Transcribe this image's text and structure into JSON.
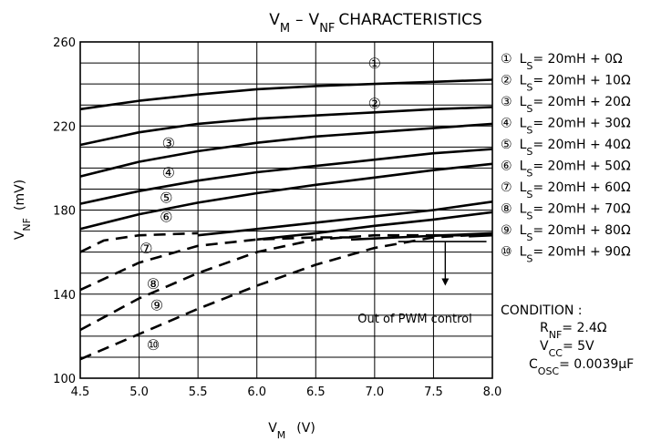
{
  "chart_data": {
    "type": "line",
    "title": {
      "main": "V",
      "sub1": "M",
      "dash": "–",
      "main2": "V",
      "sub2": "NF",
      "rest": "CHARACTERISTICS"
    },
    "xlabel": {
      "main": "V",
      "sub": "M",
      "unit": "(V)"
    },
    "ylabel": {
      "main": "V",
      "sub": "NF",
      "unit": "(mV)"
    },
    "xlim": [
      4.5,
      8.0
    ],
    "ylim": [
      100,
      260
    ],
    "x_ticks": [
      "4.5",
      "5.0",
      "5.5",
      "6.0",
      "6.5",
      "7.0",
      "7.5",
      "8.0"
    ],
    "y_ticks": [
      "100",
      "140",
      "180",
      "220",
      "260"
    ],
    "grid": true,
    "series": [
      {
        "name": "①",
        "points": [
          [
            4.5,
            228
          ],
          [
            5.0,
            232
          ],
          [
            5.5,
            235
          ],
          [
            6.0,
            237.5
          ],
          [
            6.5,
            239
          ],
          [
            7.0,
            240
          ],
          [
            7.5,
            241
          ],
          [
            8.0,
            242
          ]
        ]
      },
      {
        "name": "②",
        "points": [
          [
            4.5,
            211
          ],
          [
            5.0,
            217
          ],
          [
            5.5,
            221
          ],
          [
            6.0,
            223.5
          ],
          [
            6.5,
            225
          ],
          [
            7.0,
            226.5
          ],
          [
            7.5,
            228
          ],
          [
            8.0,
            229
          ]
        ]
      },
      {
        "name": "③",
        "points": [
          [
            4.5,
            196
          ],
          [
            5.0,
            203
          ],
          [
            5.5,
            208
          ],
          [
            6.0,
            212
          ],
          [
            6.5,
            215
          ],
          [
            7.0,
            217
          ],
          [
            7.5,
            219
          ],
          [
            8.0,
            221
          ]
        ]
      },
      {
        "name": "④",
        "points": [
          [
            4.5,
            183
          ],
          [
            5.0,
            189
          ],
          [
            5.5,
            194
          ],
          [
            6.0,
            198
          ],
          [
            6.5,
            201
          ],
          [
            7.0,
            204
          ],
          [
            7.5,
            207
          ],
          [
            8.0,
            209
          ]
        ]
      },
      {
        "name": "⑤",
        "points": [
          [
            4.5,
            171
          ],
          [
            5.0,
            178
          ],
          [
            5.5,
            183.5
          ],
          [
            6.0,
            188
          ],
          [
            6.5,
            192
          ],
          [
            7.0,
            195.5
          ],
          [
            7.5,
            199
          ],
          [
            8.0,
            202
          ]
        ]
      },
      {
        "name": "⑥",
        "points": [
          [
            5.5,
            168
          ],
          [
            6.0,
            171
          ],
          [
            6.5,
            174
          ],
          [
            7.0,
            177
          ],
          [
            7.5,
            180
          ],
          [
            8.0,
            184
          ]
        ]
      },
      {
        "name": "⑦",
        "points": [
          [
            6.0,
            166
          ],
          [
            6.5,
            169
          ],
          [
            7.0,
            172.5
          ],
          [
            7.5,
            175.5
          ],
          [
            8.0,
            179
          ]
        ]
      },
      {
        "name": "⑧",
        "points": [
          [
            6.8,
            166
          ],
          [
            7.2,
            167
          ],
          [
            7.6,
            168
          ],
          [
            8.0,
            169
          ]
        ]
      },
      {
        "name": "⑨",
        "points": [
          [
            7.5,
            168
          ],
          [
            8.0,
            168
          ]
        ]
      },
      {
        "name": "⑩",
        "points": [
          [
            7.8,
            167.5
          ],
          [
            8.0,
            168
          ]
        ]
      },
      {
        "name": "⑦ out of control",
        "style": "dashed",
        "points": [
          [
            4.5,
            160
          ],
          [
            4.7,
            165.5
          ],
          [
            5.0,
            168
          ],
          [
            5.5,
            169
          ]
        ]
      },
      {
        "name": "⑧ out of control",
        "style": "dashed",
        "points": [
          [
            4.5,
            142
          ],
          [
            5.0,
            155
          ],
          [
            5.5,
            163
          ],
          [
            6.0,
            166
          ],
          [
            6.5,
            167
          ],
          [
            6.8,
            167
          ]
        ]
      },
      {
        "name": "⑨ out of control",
        "style": "dashed",
        "points": [
          [
            4.5,
            123
          ],
          [
            5.0,
            138
          ],
          [
            5.5,
            150
          ],
          [
            6.0,
            160
          ],
          [
            6.5,
            166
          ],
          [
            7.0,
            168
          ],
          [
            7.5,
            168
          ]
        ]
      },
      {
        "name": "⑩ out of control",
        "style": "dashed",
        "points": [
          [
            4.5,
            109
          ],
          [
            5.0,
            121
          ],
          [
            5.5,
            133
          ],
          [
            6.0,
            144
          ],
          [
            6.5,
            154
          ],
          [
            7.0,
            162
          ],
          [
            7.5,
            167
          ],
          [
            7.8,
            168
          ]
        ]
      }
    ],
    "curve_labels": [
      {
        "text": "①",
        "x": 7.0,
        "y": 250
      },
      {
        "text": "②",
        "x": 7.0,
        "y": 231
      },
      {
        "text": "③",
        "x": 5.25,
        "y": 212
      },
      {
        "text": "④",
        "x": 5.25,
        "y": 198
      },
      {
        "text": "⑤",
        "x": 5.23,
        "y": 186
      },
      {
        "text": "⑥",
        "x": 5.23,
        "y": 177
      },
      {
        "text": "⑦",
        "x": 5.06,
        "y": 162
      },
      {
        "text": "⑧",
        "x": 5.12,
        "y": 145
      },
      {
        "text": "⑨",
        "x": 5.15,
        "y": 135
      },
      {
        "text": "⑩",
        "x": 5.12,
        "y": 116
      }
    ],
    "threshold": {
      "value": 165,
      "x_from": 7.2,
      "x_to": 7.95,
      "arrow_to": 144
    },
    "annotation": "Out of PWM control",
    "legend_position": "right",
    "legend": [
      {
        "mark": "①",
        "prefix": "L",
        "sub": "S",
        "text": "= 20mH + 0Ω"
      },
      {
        "mark": "②",
        "prefix": "L",
        "sub": "S",
        "text": "= 20mH + 10Ω"
      },
      {
        "mark": "③",
        "prefix": "L",
        "sub": "S",
        "text": "= 20mH + 20Ω"
      },
      {
        "mark": "④",
        "prefix": "L",
        "sub": "S",
        "text": "= 20mH + 30Ω"
      },
      {
        "mark": "⑤",
        "prefix": "L",
        "sub": "S",
        "text": "= 20mH + 40Ω"
      },
      {
        "mark": "⑥",
        "prefix": "L",
        "sub": "S",
        "text": "= 20mH + 50Ω"
      },
      {
        "mark": "⑦",
        "prefix": "L",
        "sub": "S",
        "text": "= 20mH + 60Ω"
      },
      {
        "mark": "⑧",
        "prefix": "L",
        "sub": "S",
        "text": "= 20mH + 70Ω"
      },
      {
        "mark": "⑨",
        "prefix": "L",
        "sub": "S",
        "text": "= 20mH + 80Ω"
      },
      {
        "mark": "⑩",
        "prefix": "L",
        "sub": "S",
        "text": "= 20mH + 90Ω"
      }
    ],
    "condition": {
      "heading": "CONDITION :",
      "lines": [
        {
          "prefix": "R",
          "sub": "NF",
          "text": "= 2.4Ω"
        },
        {
          "prefix": "V",
          "sub": "CC",
          "text": "= 5V"
        },
        {
          "prefix": "C",
          "sub": "OSC",
          "text": "= 0.0039μF"
        }
      ]
    },
    "colors": {
      "line": "#000000",
      "grid": "#000000",
      "background": "#ffffff"
    }
  }
}
